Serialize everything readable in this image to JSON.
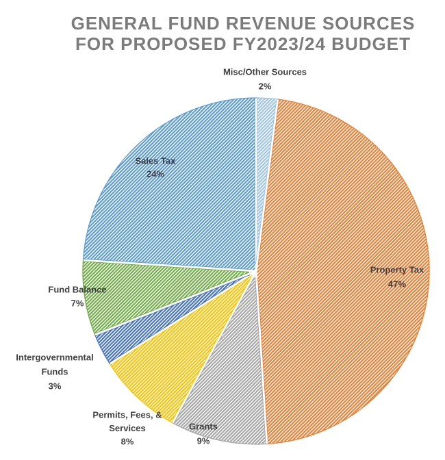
{
  "page": {
    "background_color": "#FFFFFF"
  },
  "title": {
    "text": "GENERAL FUND REVENUE SOURCES FOR PROPOSED FY2023/24 BUDGET",
    "lines": [
      "GENERAL FUND REVENUE SOURCES",
      "FOR PROPOSED FY2023/24 BUDGET"
    ],
    "color": "#7B7B7B"
  },
  "chart_data": {
    "type": "pie",
    "title": "GENERAL FUND REVENUE SOURCES FOR PROPOSED FY2023/24 BUDGET",
    "units": "percent",
    "start_angle_deg": 0,
    "direction": "clockwise",
    "legend": "none",
    "label_color": "#3F3F3F",
    "separator_color": "#FFFFFF",
    "fill_style": "diagonal-hatch",
    "slices": [
      {
        "id": "misc",
        "label": "Misc/Other Sources",
        "value": 2,
        "value_label": "2%",
        "color": "#9DC3E6",
        "label_lines": [
          "Misc/Other Sources",
          "2%"
        ]
      },
      {
        "id": "property",
        "label": "Property Tax",
        "value": 47,
        "value_label": "47%",
        "color": "#ED7D31",
        "label_lines": [
          "Property Tax",
          "47%"
        ]
      },
      {
        "id": "grants",
        "label": "Grants",
        "value": 9,
        "value_label": "9%",
        "color": "#A6A6A6",
        "label_lines": [
          "Grants",
          "9%"
        ]
      },
      {
        "id": "permits",
        "label": "Permits, Fees, & Services",
        "value": 8,
        "value_label": "8%",
        "color": "#FFC000",
        "label_lines": [
          "Permits, Fees, &",
          "Services",
          "8%"
        ]
      },
      {
        "id": "intergov",
        "label": "Intergovernmental Funds",
        "value": 3,
        "value_label": "3%",
        "color": "#4472C4",
        "label_lines": [
          "Intergovernmental",
          "Funds",
          "3%"
        ]
      },
      {
        "id": "fund",
        "label": "Fund Balance",
        "value": 7,
        "value_label": "7%",
        "color": "#70AD47",
        "label_lines": [
          "Fund Balance",
          "7%"
        ]
      },
      {
        "id": "sales",
        "label": "Sales Tax",
        "value": 24,
        "value_label": "24%",
        "color": "#5B9BD5",
        "label_lines": [
          "Sales Tax",
          "24%"
        ]
      }
    ]
  }
}
